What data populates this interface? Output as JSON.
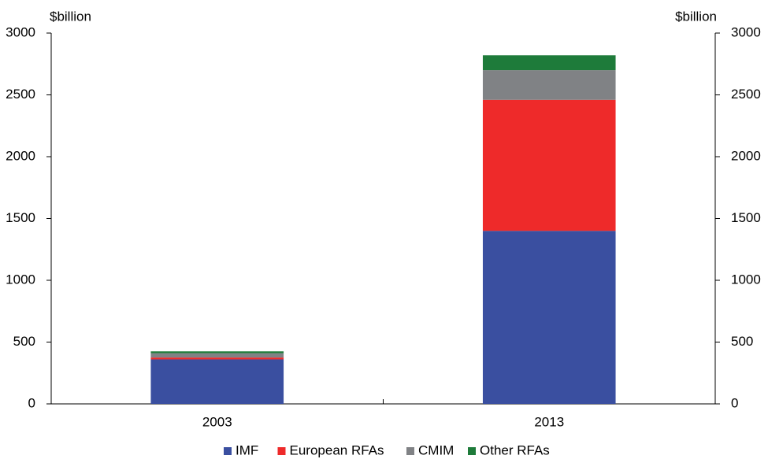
{
  "chart_data": {
    "type": "stacked_bar",
    "y_label": "$billion",
    "y2_label": "$billion",
    "categories": [
      "2003",
      "2013"
    ],
    "series": [
      {
        "name": "IMF",
        "color": "#3a4fa0",
        "values": [
          360,
          1400
        ]
      },
      {
        "name": "European RFAs",
        "color": "#ee2a2a",
        "values": [
          15,
          1060
        ]
      },
      {
        "name": "CMIM",
        "color": "#808285",
        "values": [
          35,
          240
        ]
      },
      {
        "name": "Other RFAs",
        "color": "#1e7b3a",
        "values": [
          15,
          120
        ]
      }
    ],
    "ylim": [
      0,
      3000
    ],
    "yticks": [
      0,
      500,
      1000,
      1500,
      2000,
      2500,
      3000
    ],
    "y2lim": [
      0,
      3000
    ],
    "y2ticks": [
      0,
      500,
      1000,
      1500,
      2000,
      2500,
      3000
    ],
    "legend": "bottom"
  }
}
